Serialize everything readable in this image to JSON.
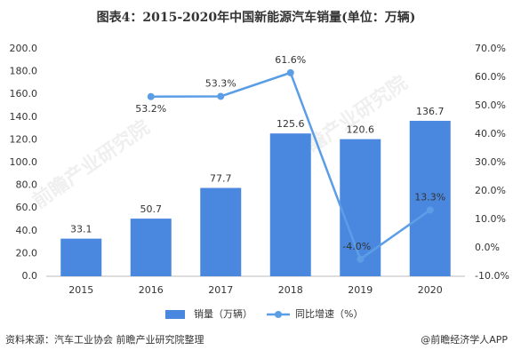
{
  "chart_data": {
    "type": "bar",
    "title": "图表4：2015-2020年中国新能源汽车销量(单位：万辆)",
    "categories": [
      "2015",
      "2016",
      "2017",
      "2018",
      "2019",
      "2020"
    ],
    "series": [
      {
        "name": "销量（万辆）",
        "type": "bar",
        "color": "#4a88e0",
        "values": [
          33.1,
          50.7,
          77.7,
          125.6,
          120.6,
          136.7
        ]
      },
      {
        "name": "同比增速（%）",
        "type": "line",
        "axis": "y2",
        "color": "#5b9ee6",
        "values": [
          null,
          53.2,
          53.3,
          61.6,
          -4.0,
          13.3
        ],
        "value_labels": [
          null,
          "53.2%",
          "53.3%",
          "61.6%",
          "-4.0%",
          "13.3%"
        ]
      }
    ],
    "ylim": [
      0,
      200
    ],
    "yticks": [
      {
        "value": 0,
        "label": "0.0"
      },
      {
        "value": 20,
        "label": "20.0"
      },
      {
        "value": 40,
        "label": "40.0"
      },
      {
        "value": 60,
        "label": "60.0"
      },
      {
        "value": 80,
        "label": "80.0"
      },
      {
        "value": 100,
        "label": "100.0"
      },
      {
        "value": 120,
        "label": "120.0"
      },
      {
        "value": 140,
        "label": "140.0"
      },
      {
        "value": 160,
        "label": "160.0"
      },
      {
        "value": 180,
        "label": "180.0"
      },
      {
        "value": 200,
        "label": "200.0"
      }
    ],
    "y2lim": [
      -10,
      70
    ],
    "y2ticks": [
      {
        "value": -10,
        "label": "-10.0%"
      },
      {
        "value": 0,
        "label": "0.0%"
      },
      {
        "value": 10,
        "label": "10.0%"
      },
      {
        "value": 20,
        "label": "20.0%"
      },
      {
        "value": 30,
        "label": "30.0%"
      },
      {
        "value": 40,
        "label": "40.0%"
      },
      {
        "value": 50,
        "label": "50.0%"
      },
      {
        "value": 60,
        "label": "60.0%"
      },
      {
        "value": 70,
        "label": "70.0%"
      }
    ],
    "grid": false,
    "legend": "bottom",
    "source": "资料来源：汽车工业协会 前瞻产业研究院整理",
    "credit": "@前瞻经济学人APP",
    "watermark": "前瞻产业研究院"
  }
}
